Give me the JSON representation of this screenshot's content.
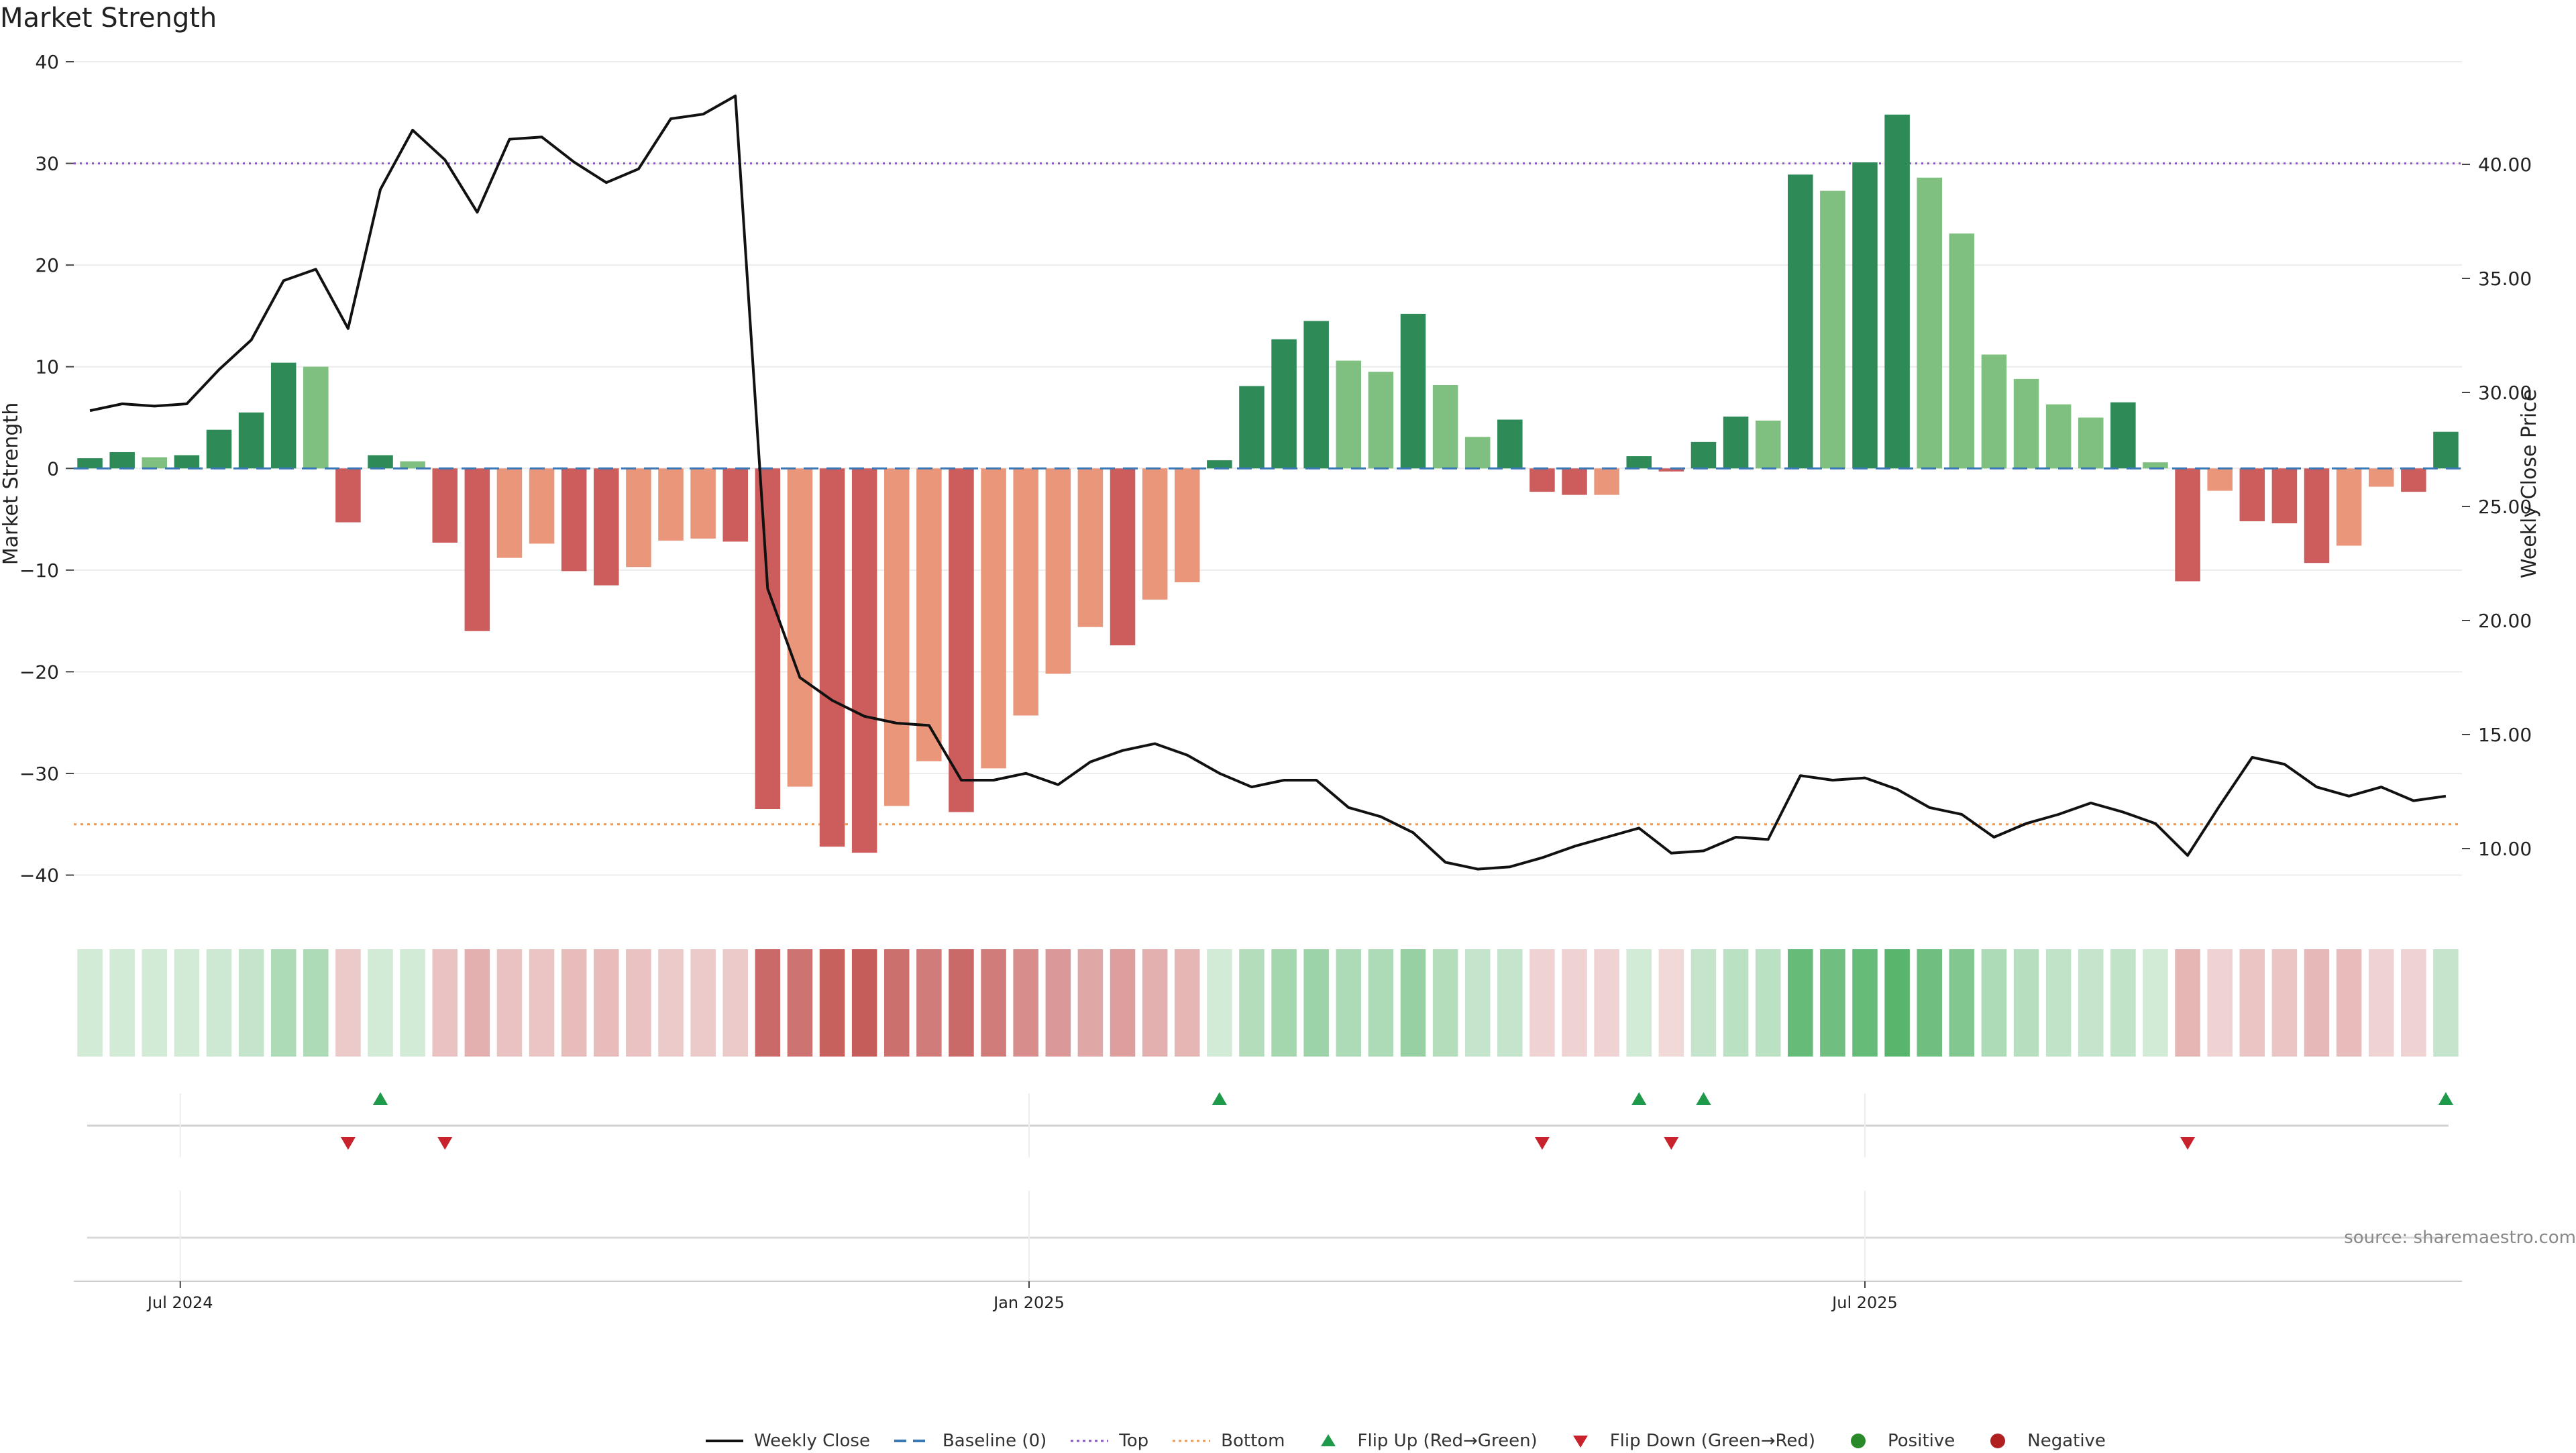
{
  "chart_data": {
    "type": "bar",
    "title": "Market Strength",
    "ylabel": "Market Strength",
    "y2label": "Weekly Close Price",
    "ylim": [
      -43,
      40
    ],
    "y_ticks": [
      40,
      30,
      20,
      10,
      0,
      -10,
      -20,
      -30,
      -40
    ],
    "y_tick_labels": [
      "40",
      "30",
      "20",
      "10",
      "0",
      "−10",
      "−20",
      "−30",
      "−40"
    ],
    "y2lim": [
      7.5,
      44.5
    ],
    "y2_ticks": [
      40,
      35,
      30,
      25,
      20,
      15,
      10
    ],
    "y2_tick_labels": [
      "40.00",
      "35.00",
      "30.00",
      "25.00",
      "20.00",
      "15.00",
      "10.00"
    ],
    "x_ticks": [
      {
        "index": 3.3,
        "label": "Jul 2024"
      },
      {
        "index": 29.6,
        "label": "Jan 2025"
      },
      {
        "index": 55.5,
        "label": "Jul 2025"
      }
    ],
    "top_line": 30,
    "bottom_line": -35,
    "strength": [
      1.0,
      1.6,
      1.1,
      1.3,
      3.8,
      5.5,
      10.4,
      10.0,
      -5.3,
      1.3,
      0.7,
      -7.3,
      -16.0,
      -8.8,
      -7.4,
      -10.1,
      -11.5,
      -9.7,
      -7.1,
      -6.9,
      -7.2,
      -33.5,
      -31.3,
      -37.2,
      -37.8,
      -33.2,
      -28.8,
      -33.8,
      -29.5,
      -24.3,
      -20.2,
      -15.6,
      -17.4,
      -12.9,
      -11.2,
      0.8,
      8.1,
      12.7,
      14.5,
      10.6,
      9.5,
      15.2,
      8.2,
      3.1,
      4.8,
      -2.3,
      -2.6,
      -2.6,
      1.2,
      -0.3,
      2.6,
      5.1,
      4.7,
      28.9,
      27.3,
      30.1,
      34.8,
      28.6,
      23.1,
      11.2,
      8.8,
      6.3,
      5.0,
      6.5,
      0.6,
      -11.1,
      -2.2,
      -5.2,
      -5.4,
      -9.3,
      -7.6,
      -1.8,
      -2.3,
      3.6
    ],
    "shade": [
      0,
      0,
      1,
      0,
      0,
      0,
      0,
      1,
      0,
      0,
      1,
      0,
      0,
      1,
      1,
      0,
      0,
      1,
      1,
      1,
      0,
      0,
      1,
      0,
      0,
      1,
      1,
      0,
      1,
      1,
      1,
      1,
      0,
      1,
      1,
      0,
      0,
      0,
      0,
      1,
      1,
      0,
      1,
      1,
      0,
      0,
      0,
      1,
      0,
      0,
      0,
      0,
      1,
      0,
      1,
      0,
      0,
      1,
      1,
      1,
      1,
      1,
      1,
      0,
      1,
      0,
      1,
      0,
      0,
      0,
      1,
      1,
      0,
      0
    ],
    "close": [
      29.2,
      29.5,
      29.4,
      29.5,
      31.0,
      32.3,
      34.9,
      35.4,
      32.8,
      38.9,
      41.5,
      40.2,
      37.9,
      41.1,
      41.2,
      40.1,
      39.2,
      39.8,
      42.0,
      42.2,
      43.0,
      21.4,
      17.5,
      16.5,
      15.8,
      15.5,
      15.4,
      13.0,
      13.0,
      13.3,
      12.8,
      13.8,
      14.3,
      14.6,
      14.1,
      13.3,
      12.7,
      13.0,
      13.0,
      11.8,
      11.4,
      10.7,
      9.4,
      9.1,
      9.2,
      9.6,
      10.1,
      10.5,
      10.9,
      9.8,
      9.9,
      10.5,
      10.4,
      13.2,
      13.0,
      13.1,
      12.6,
      11.8,
      11.5,
      10.5,
      11.1,
      11.5,
      12.0,
      11.6,
      11.1,
      9.7,
      11.9,
      14.0,
      13.7,
      12.7,
      12.3,
      12.7,
      12.1,
      12.3
    ],
    "heat_alpha": [
      0.25,
      0.25,
      0.25,
      0.25,
      0.28,
      0.33,
      0.45,
      0.45,
      0.3,
      0.25,
      0.25,
      0.35,
      0.45,
      0.35,
      0.33,
      0.38,
      0.38,
      0.35,
      0.3,
      0.3,
      0.3,
      0.85,
      0.8,
      0.9,
      0.92,
      0.82,
      0.75,
      0.85,
      0.75,
      0.65,
      0.58,
      0.5,
      0.55,
      0.45,
      0.42,
      0.25,
      0.42,
      0.5,
      0.55,
      0.45,
      0.45,
      0.58,
      0.42,
      0.33,
      0.33,
      0.25,
      0.25,
      0.25,
      0.25,
      0.22,
      0.33,
      0.38,
      0.38,
      0.85,
      0.8,
      0.85,
      0.92,
      0.8,
      0.7,
      0.45,
      0.4,
      0.35,
      0.33,
      0.35,
      0.25,
      0.42,
      0.25,
      0.33,
      0.33,
      0.4,
      0.38,
      0.25,
      0.25,
      0.33
    ],
    "flip_up_index": [
      9,
      35,
      48,
      50,
      73
    ],
    "flip_down_index": [
      8,
      11,
      45,
      49,
      65
    ],
    "legend": [
      {
        "label": "Weekly Close",
        "kind": "line",
        "color": "#111111"
      },
      {
        "label": "Baseline (0)",
        "kind": "dash",
        "color": "#3a78b5"
      },
      {
        "label": "Top",
        "kind": "dot",
        "color": "#8a55c8"
      },
      {
        "label": "Bottom",
        "kind": "dot",
        "color": "#ef9a52"
      },
      {
        "label": "Flip Up (Red→Green)",
        "kind": "tri-up",
        "color": "#1e9a4a"
      },
      {
        "label": "Flip Down (Green→Red)",
        "kind": "tri-down",
        "color": "#c8232c"
      },
      {
        "label": "Positive",
        "kind": "circle",
        "color": "#2a8a2a"
      },
      {
        "label": "Negative",
        "kind": "circle",
        "color": "#b02020"
      }
    ],
    "colors": {
      "pos_dark": "#2e8b57",
      "pos_light": "#7fbf7f",
      "neg_dark": "#cd5c5c",
      "neg_light": "#e9967a",
      "heat_pos": "#4caf60",
      "heat_neg": "#c0504d",
      "line": "#111111",
      "baseline": "#3a78b5",
      "top": "#8a55c8",
      "bottom": "#ef9a52",
      "flip_up": "#1e9a4a",
      "flip_down": "#c8232c"
    }
  },
  "source": "source: sharemaestro.com"
}
